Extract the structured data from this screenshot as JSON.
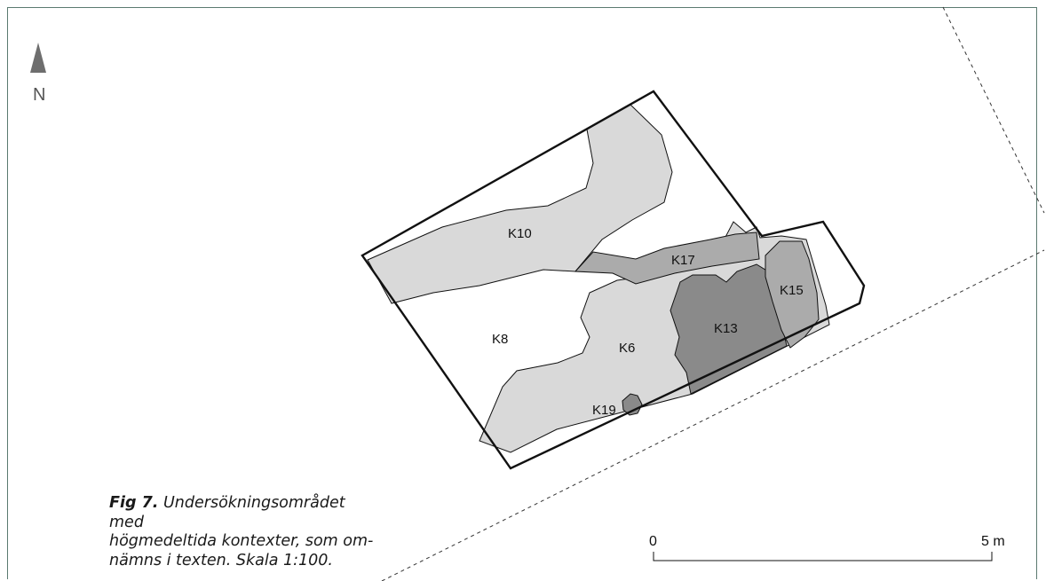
{
  "north": {
    "letter": "N"
  },
  "contexts": {
    "k10": "K10",
    "k17": "K17",
    "k15": "K15",
    "k13": "K13",
    "k8": "K8",
    "k6": "K6",
    "k19": "K19"
  },
  "scale_bar": {
    "start": "0",
    "end": "5 m"
  },
  "caption": {
    "fig_number": "Fig 7.",
    "lines": [
      "Undersökningsområdet med",
      "högmedeltida kontexter, som om-",
      "nämns i texten. Skala 1:100."
    ]
  },
  "colors": {
    "light_fill": "#d9d9d9",
    "medium_fill": "#ababab",
    "dark_fill": "#8a8a8a",
    "outline": "#111111",
    "frame": "#5b7a70"
  }
}
